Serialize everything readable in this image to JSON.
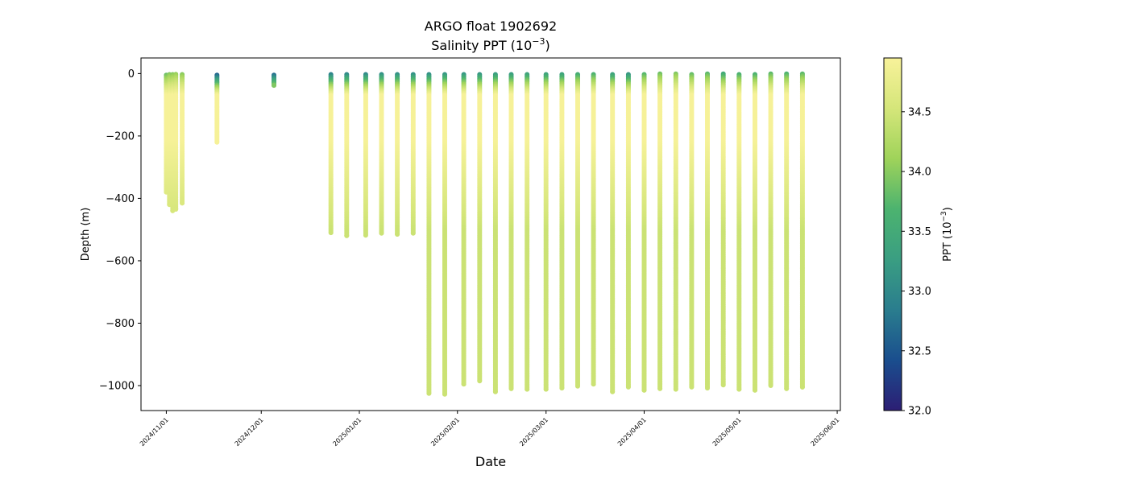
{
  "chart_data": {
    "type": "scatter",
    "title": "ARGO float 1902692",
    "subtitle_prefix": "Salinity PPT (10",
    "subtitle_exp": "−3",
    "subtitle_suffix": ")",
    "xlabel": "Date",
    "ylabel": "Depth (m)",
    "colorbar_label_prefix": "PPT (10",
    "colorbar_label_exp": "−3",
    "colorbar_label_suffix": ")",
    "x_axis": {
      "type": "date",
      "min": "2024-10-24",
      "max": "2025-06-02"
    },
    "ylim": [
      -1080,
      50
    ],
    "yticks": [
      0,
      -200,
      -400,
      -600,
      -800,
      -1000
    ],
    "ytick_labels": [
      "0",
      "−200",
      "−400",
      "−600",
      "−800",
      "−1000"
    ],
    "xticks": [
      "2024-11-01",
      "2024-12-01",
      "2025-01-01",
      "2025-02-01",
      "2025-03-01",
      "2025-04-01",
      "2025-05-01",
      "2025-06-01"
    ],
    "xtick_labels": [
      "2024/11/01",
      "2024/12/01",
      "2025/01/01",
      "2025/02/01",
      "2025/03/01",
      "2025/04/01",
      "2025/05/01",
      "2025/06/01"
    ],
    "colorbar": {
      "min": 32.0,
      "max": 34.95,
      "ticks": [
        32.0,
        32.5,
        33.0,
        33.5,
        34.0,
        34.5
      ],
      "tick_labels": [
        "32.0",
        "32.5",
        "33.0",
        "33.5",
        "34.0",
        "34.5"
      ],
      "colormap": [
        "#2c1e74",
        "#1a4e8e",
        "#2a7d8e",
        "#3a9e82",
        "#4cb36f",
        "#9fd35a",
        "#d5e67a",
        "#f8f29a"
      ]
    },
    "grid": false,
    "profiles": [
      {
        "date": "2024-11-01",
        "min_depth": -5,
        "max_depth": -380,
        "surface_salinity": 33.7
      },
      {
        "date": "2024-11-02",
        "min_depth": -3,
        "max_depth": -420,
        "surface_salinity": 33.9
      },
      {
        "date": "2024-11-03",
        "min_depth": -3,
        "max_depth": -440,
        "surface_salinity": 33.9
      },
      {
        "date": "2024-11-04",
        "min_depth": -2,
        "max_depth": -435,
        "surface_salinity": 34.0
      },
      {
        "date": "2024-11-06",
        "min_depth": -3,
        "max_depth": -415,
        "surface_salinity": 33.9
      },
      {
        "date": "2024-11-17",
        "min_depth": -5,
        "max_depth": -220,
        "surface_salinity": 32.3
      },
      {
        "date": "2024-12-05",
        "min_depth": -5,
        "max_depth": -38,
        "surface_salinity": 32.4
      },
      {
        "date": "2024-12-23",
        "min_depth": -3,
        "max_depth": -510,
        "surface_salinity": 32.7
      },
      {
        "date": "2024-12-28",
        "min_depth": -3,
        "max_depth": -520,
        "surface_salinity": 32.8
      },
      {
        "date": "2025-01-03",
        "min_depth": -3,
        "max_depth": -518,
        "surface_salinity": 32.8
      },
      {
        "date": "2025-01-08",
        "min_depth": -3,
        "max_depth": -512,
        "surface_salinity": 32.9
      },
      {
        "date": "2025-01-13",
        "min_depth": -3,
        "max_depth": -515,
        "surface_salinity": 32.9
      },
      {
        "date": "2025-01-18",
        "min_depth": -3,
        "max_depth": -512,
        "surface_salinity": 32.9
      },
      {
        "date": "2025-01-23",
        "min_depth": -3,
        "max_depth": -1025,
        "surface_salinity": 32.9
      },
      {
        "date": "2025-01-28",
        "min_depth": -3,
        "max_depth": -1028,
        "surface_salinity": 33.0
      },
      {
        "date": "2025-02-03",
        "min_depth": -3,
        "max_depth": -995,
        "surface_salinity": 33.0
      },
      {
        "date": "2025-02-08",
        "min_depth": -3,
        "max_depth": -985,
        "surface_salinity": 33.0
      },
      {
        "date": "2025-02-13",
        "min_depth": -3,
        "max_depth": -1020,
        "surface_salinity": 33.1
      },
      {
        "date": "2025-02-18",
        "min_depth": -3,
        "max_depth": -1010,
        "surface_salinity": 33.1
      },
      {
        "date": "2025-02-23",
        "min_depth": -3,
        "max_depth": -1012,
        "surface_salinity": 33.2
      },
      {
        "date": "2025-03-01",
        "min_depth": -3,
        "max_depth": -1012,
        "surface_salinity": 33.2
      },
      {
        "date": "2025-03-06",
        "min_depth": -3,
        "max_depth": -1008,
        "surface_salinity": 33.2
      },
      {
        "date": "2025-03-11",
        "min_depth": -3,
        "max_depth": -1002,
        "surface_salinity": 33.4
      },
      {
        "date": "2025-03-16",
        "min_depth": -3,
        "max_depth": -995,
        "surface_salinity": 33.5
      },
      {
        "date": "2025-03-22",
        "min_depth": -3,
        "max_depth": -1020,
        "surface_salinity": 33.2
      },
      {
        "date": "2025-03-27",
        "min_depth": -3,
        "max_depth": -1005,
        "surface_salinity": 33.0
      },
      {
        "date": "2025-04-01",
        "min_depth": -3,
        "max_depth": -1015,
        "surface_salinity": 33.6
      },
      {
        "date": "2025-04-06",
        "min_depth": -1,
        "max_depth": -1010,
        "surface_salinity": 33.8
      },
      {
        "date": "2025-04-11",
        "min_depth": -1,
        "max_depth": -1012,
        "surface_salinity": 33.9
      },
      {
        "date": "2025-04-16",
        "min_depth": -3,
        "max_depth": -1005,
        "surface_salinity": 33.7
      },
      {
        "date": "2025-04-21",
        "min_depth": -1,
        "max_depth": -1008,
        "surface_salinity": 33.7
      },
      {
        "date": "2025-04-26",
        "min_depth": -1,
        "max_depth": -998,
        "surface_salinity": 33.4
      },
      {
        "date": "2025-05-01",
        "min_depth": -3,
        "max_depth": -1012,
        "surface_salinity": 33.5
      },
      {
        "date": "2025-05-06",
        "min_depth": -3,
        "max_depth": -1015,
        "surface_salinity": 33.5
      },
      {
        "date": "2025-05-11",
        "min_depth": -1,
        "max_depth": -1000,
        "surface_salinity": 33.7
      },
      {
        "date": "2025-05-16",
        "min_depth": -1,
        "max_depth": -1010,
        "surface_salinity": 33.6
      },
      {
        "date": "2025-05-21",
        "min_depth": -1,
        "max_depth": -1005,
        "surface_salinity": 33.7
      }
    ]
  }
}
